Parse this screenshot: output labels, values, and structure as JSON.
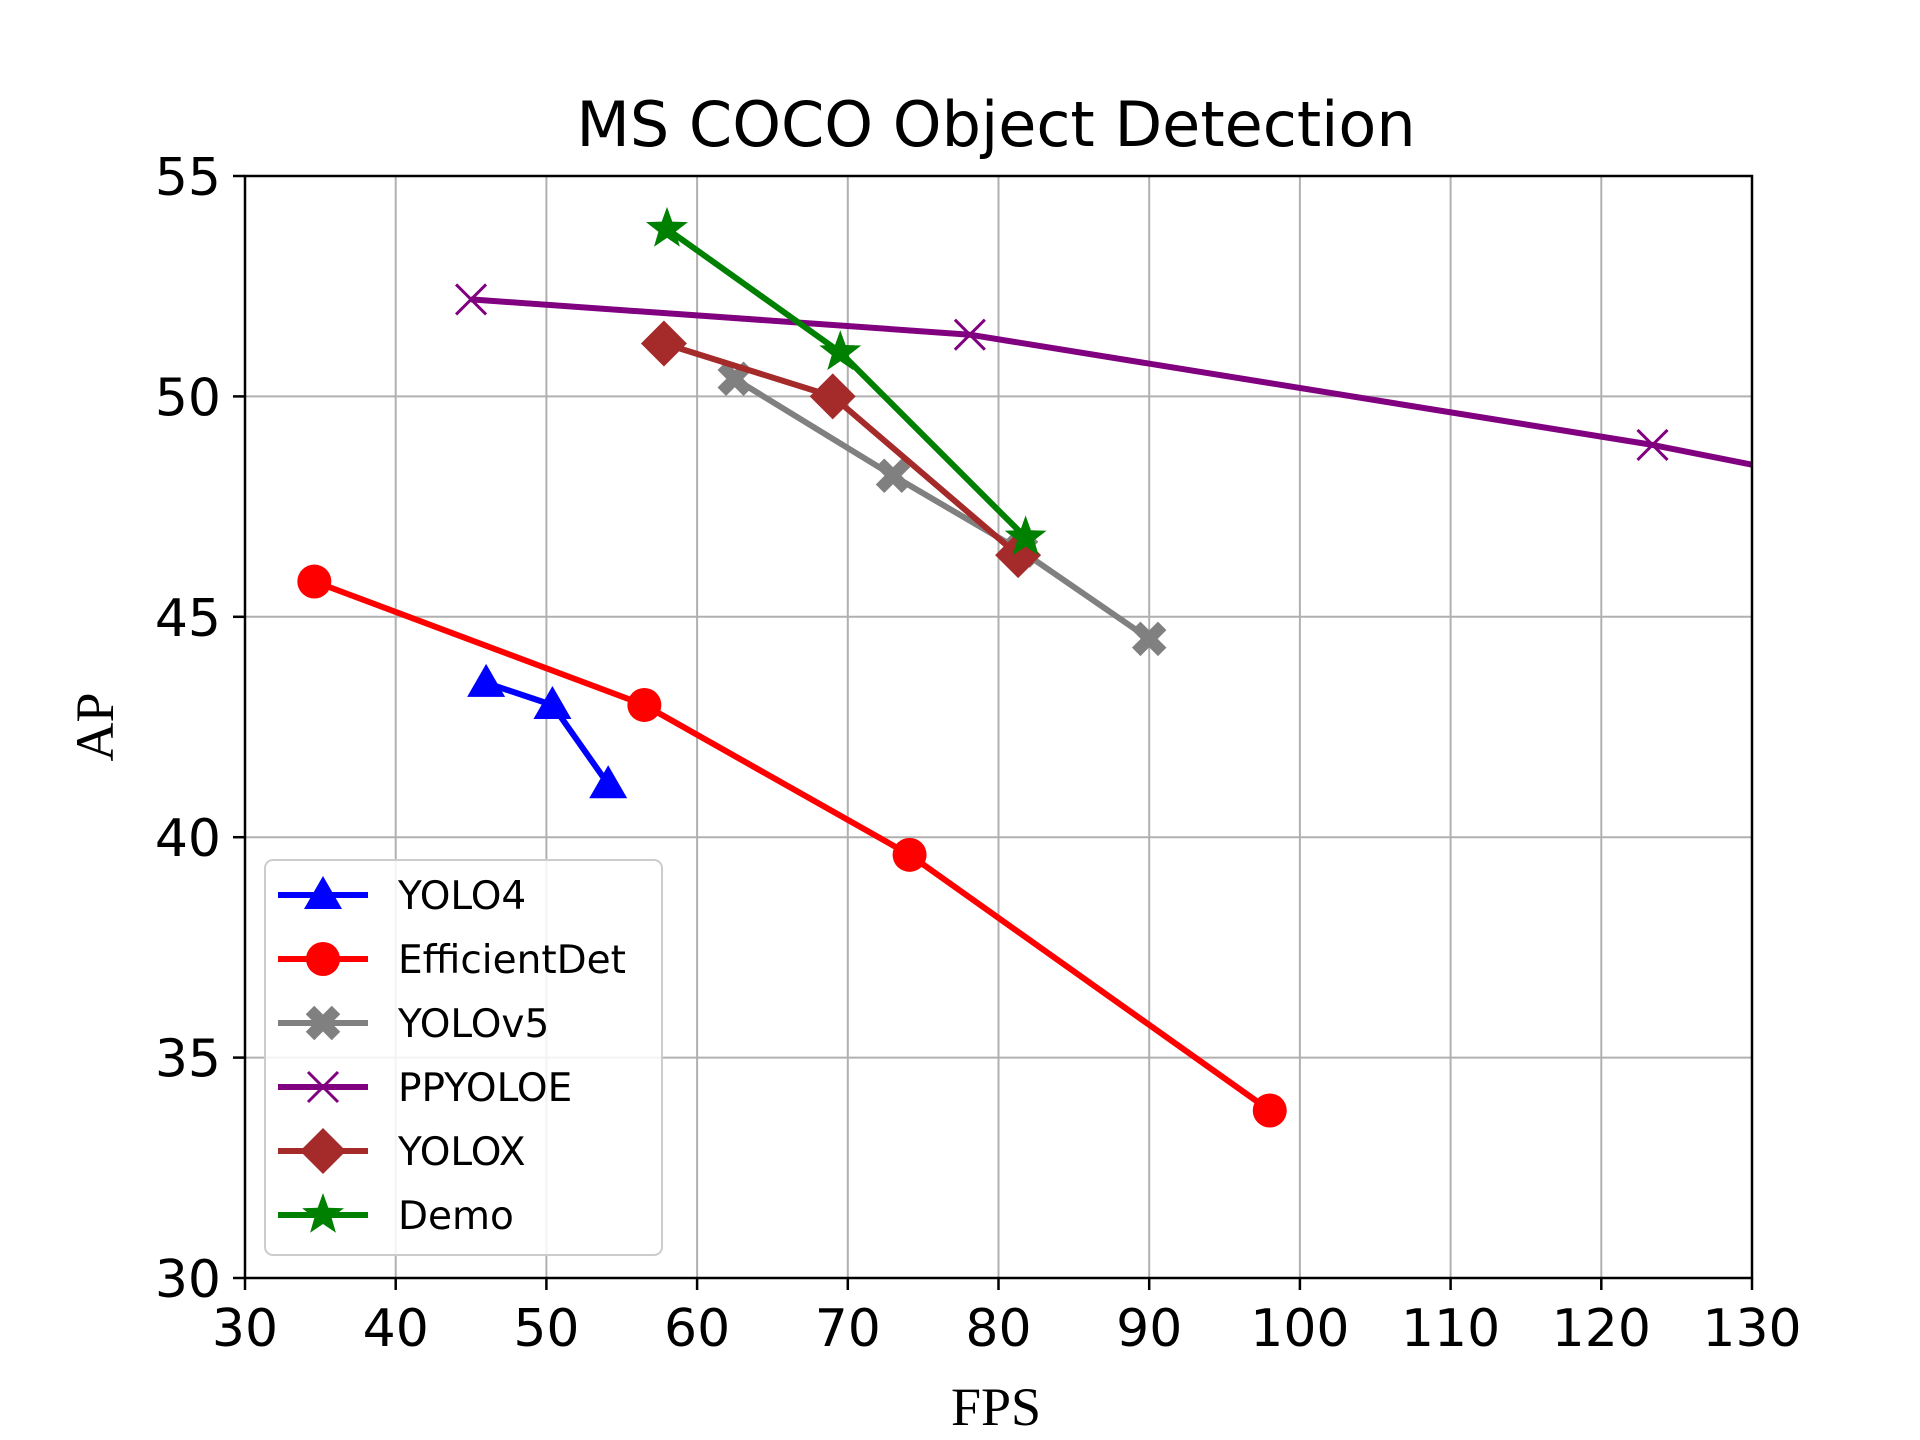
{
  "chart_data": {
    "type": "line",
    "title": "MS COCO Object Detection",
    "xlabel": "FPS",
    "ylabel": "AP",
    "xlim": [
      30,
      130
    ],
    "ylim": [
      30,
      55
    ],
    "xticks": [
      30,
      40,
      50,
      60,
      70,
      80,
      90,
      100,
      110,
      120,
      130
    ],
    "yticks": [
      30,
      35,
      40,
      45,
      50,
      55
    ],
    "grid": true,
    "legend_position": "lower-left",
    "series": [
      {
        "name": "YOLO4",
        "color": "#0000ff",
        "marker": "triangle",
        "x": [
          46.0,
          50.4,
          54.1
        ],
        "y": [
          43.5,
          43.0,
          41.2
        ]
      },
      {
        "name": "EfficientDet",
        "color": "#ff0000",
        "marker": "circle",
        "x": [
          34.6,
          56.5,
          74.1,
          98.0
        ],
        "y": [
          45.8,
          43.0,
          39.6,
          33.8
        ]
      },
      {
        "name": "YOLOv5",
        "color": "#808080",
        "marker": "plus-x",
        "x": [
          62.5,
          73.0,
          81.5,
          90.0
        ],
        "y": [
          50.4,
          48.2,
          46.5,
          44.5
        ]
      },
      {
        "name": "PPYOLOE",
        "color": "#800080",
        "marker": "x",
        "x": [
          45.0,
          78.1,
          123.4,
          130.0
        ],
        "y": [
          52.2,
          51.4,
          48.9,
          48.45
        ],
        "marker_count": 3
      },
      {
        "name": "YOLOX",
        "color": "#a52a2a",
        "marker": "diamond",
        "x": [
          57.8,
          69.0,
          81.3
        ],
        "y": [
          51.2,
          50.0,
          46.4
        ]
      },
      {
        "name": "Demo",
        "color": "#008000",
        "marker": "star",
        "x": [
          58.0,
          69.5,
          81.8
        ],
        "y": [
          53.8,
          51.0,
          46.8
        ]
      }
    ]
  }
}
